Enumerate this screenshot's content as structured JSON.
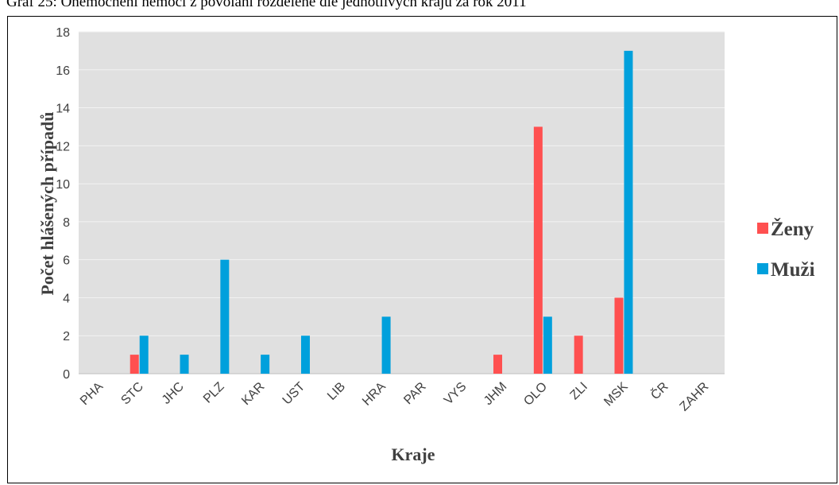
{
  "caption": "Graf 25: Onemocnění nemocí z povolání rozdělené dle jednotlivých krajů za rok 2011",
  "chart_data": {
    "type": "bar",
    "categories": [
      "PHA",
      "STC",
      "JHC",
      "PLZ",
      "KAR",
      "UST",
      "LIB",
      "HRA",
      "PAR",
      "VYS",
      "JHM",
      "OLO",
      "ZLI",
      "MSK",
      "ČR",
      "ZAHR"
    ],
    "series": [
      {
        "name": "Ženy",
        "color": "#ff5050",
        "values": [
          0,
          1,
          0,
          0,
          0,
          0,
          0,
          0,
          0,
          0,
          1,
          13,
          2,
          4,
          0,
          0
        ]
      },
      {
        "name": "Muži",
        "color": "#00a0dc",
        "values": [
          0,
          2,
          1,
          6,
          1,
          2,
          0,
          3,
          0,
          0,
          0,
          3,
          0,
          17,
          0,
          0
        ]
      }
    ],
    "xlabel": "Kraje",
    "ylabel": "Počet hlášených případů",
    "ylim": [
      0,
      18
    ],
    "ytick_step": 2,
    "grid": true,
    "plot_background": "#e0e0e0",
    "legend_position": "right"
  }
}
